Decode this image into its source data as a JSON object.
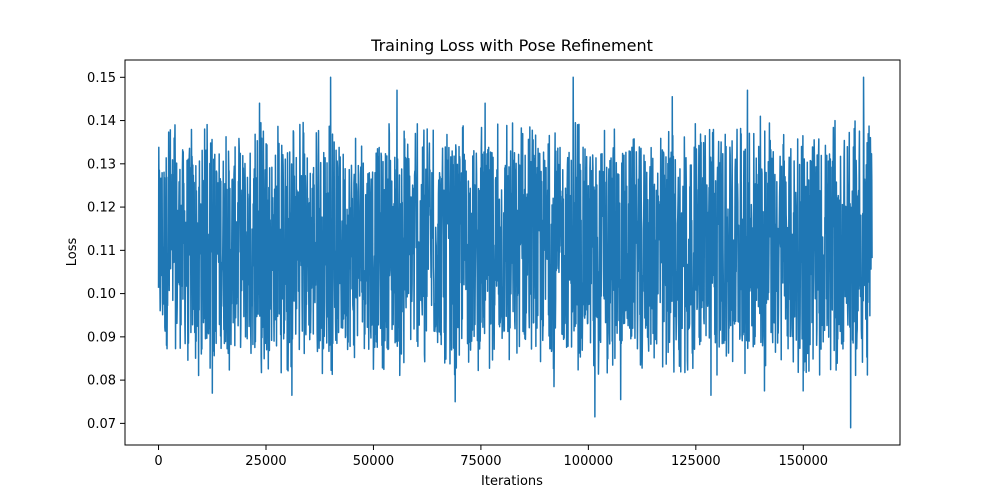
{
  "chart_data": {
    "type": "line",
    "title": "Training Loss with Pose Refinement",
    "xlabel": "Iterations",
    "ylabel": "Loss",
    "xlim": [
      -7800,
      172500
    ],
    "ylim": [
      0.065,
      0.154
    ],
    "xticks": [
      0,
      25000,
      50000,
      75000,
      100000,
      125000,
      150000
    ],
    "yticks": [
      0.07,
      0.08,
      0.09,
      0.1,
      0.11,
      0.12,
      0.13,
      0.14,
      0.15
    ],
    "ytick_labels": [
      "0.07",
      "0.08",
      "0.09",
      "0.10",
      "0.11",
      "0.12",
      "0.13",
      "0.14",
      "0.15"
    ],
    "grid": false,
    "series": [
      {
        "color": "#1f77b4",
        "x_range": [
          0,
          166000
        ],
        "mean": 0.1105,
        "band": [
          0.087,
          0.134
        ],
        "peaks": [
          {
            "x": 40000,
            "y": 0.15
          },
          {
            "x": 55500,
            "y": 0.147
          },
          {
            "x": 96500,
            "y": 0.15
          },
          {
            "x": 164000,
            "y": 0.15
          },
          {
            "x": 23500,
            "y": 0.144
          },
          {
            "x": 76000,
            "y": 0.144
          },
          {
            "x": 119500,
            "y": 0.1455
          },
          {
            "x": 137000,
            "y": 0.147
          },
          {
            "x": 3800,
            "y": 0.139
          },
          {
            "x": 140000,
            "y": 0.141
          }
        ],
        "troughs": [
          {
            "x": 101500,
            "y": 0.0715
          },
          {
            "x": 161000,
            "y": 0.069
          },
          {
            "x": 69000,
            "y": 0.075
          },
          {
            "x": 31000,
            "y": 0.0765
          },
          {
            "x": 12500,
            "y": 0.077
          },
          {
            "x": 128500,
            "y": 0.0765
          },
          {
            "x": 107500,
            "y": 0.0755
          },
          {
            "x": 141000,
            "y": 0.0775
          },
          {
            "x": 150000,
            "y": 0.0775
          },
          {
            "x": 92000,
            "y": 0.0785
          }
        ]
      }
    ]
  }
}
